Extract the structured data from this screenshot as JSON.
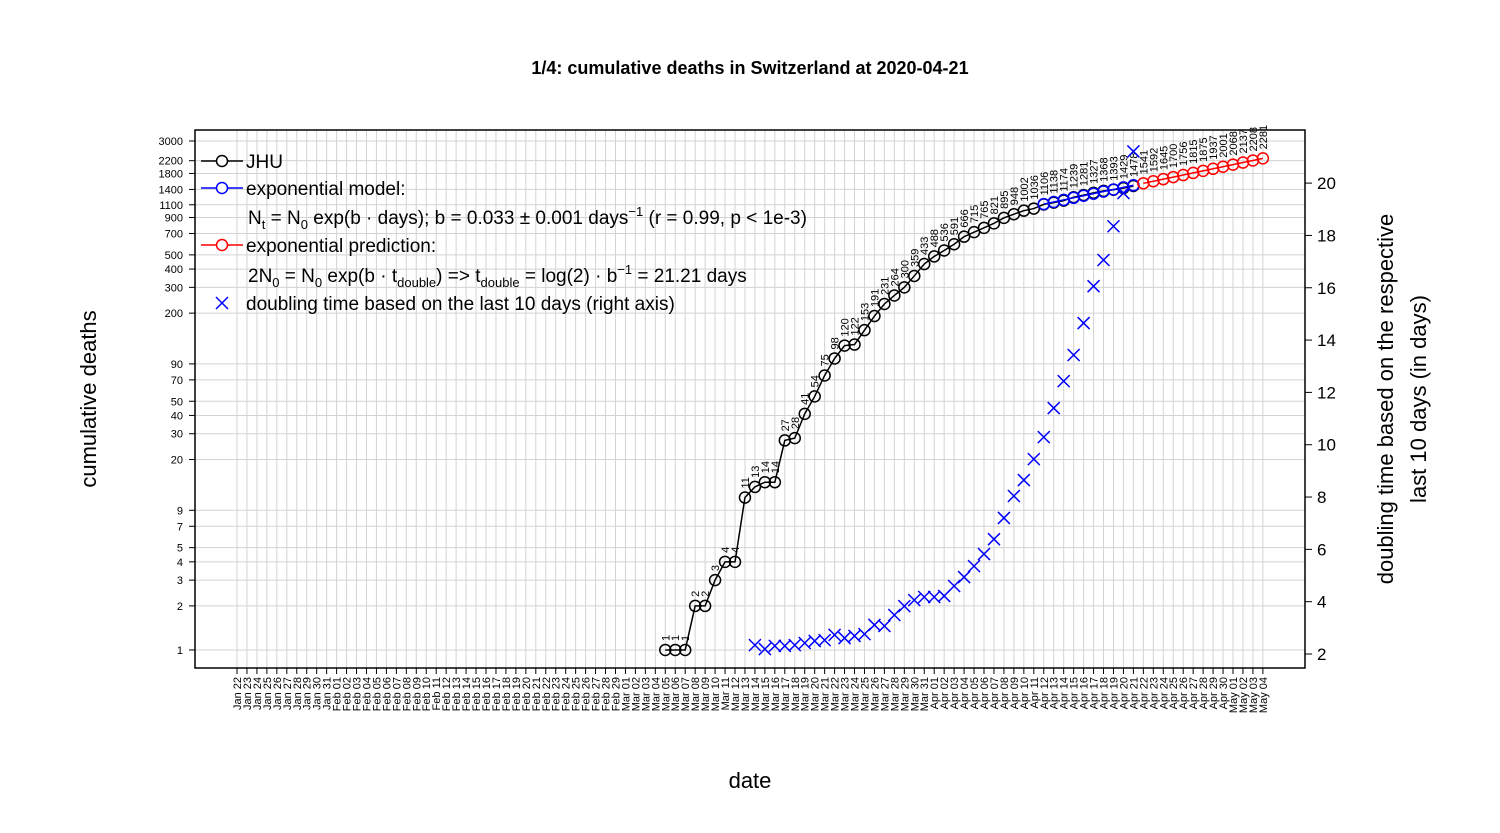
{
  "chart_data": {
    "type": "line",
    "title": "1/4: cumulative deaths in Switzerland at 2020-04-21",
    "x_label": "date",
    "y_label": "cumulative deaths",
    "y2_label": [
      "doubling time based on the respective",
      "last 10 days (in days)"
    ],
    "log_y": true,
    "grid": true,
    "legend_position": "top-left",
    "categories": [
      "Jan 22",
      "Jan 23",
      "Jan 24",
      "Jan 25",
      "Jan 26",
      "Jan 27",
      "Jan 28",
      "Jan 29",
      "Jan 30",
      "Jan 31",
      "Feb 01",
      "Feb 02",
      "Feb 03",
      "Feb 04",
      "Feb 05",
      "Feb 06",
      "Feb 07",
      "Feb 08",
      "Feb 09",
      "Feb 10",
      "Feb 11",
      "Feb 12",
      "Feb 13",
      "Feb 14",
      "Feb 15",
      "Feb 16",
      "Feb 17",
      "Feb 18",
      "Feb 19",
      "Feb 20",
      "Feb 21",
      "Feb 22",
      "Feb 23",
      "Feb 24",
      "Feb 25",
      "Feb 26",
      "Feb 27",
      "Feb 28",
      "Feb 29",
      "Mar 01",
      "Mar 02",
      "Mar 03",
      "Mar 04",
      "Mar 05",
      "Mar 06",
      "Mar 07",
      "Mar 08",
      "Mar 09",
      "Mar 10",
      "Mar 11",
      "Mar 12",
      "Mar 13",
      "Mar 14",
      "Mar 15",
      "Mar 16",
      "Mar 17",
      "Mar 18",
      "Mar 19",
      "Mar 20",
      "Mar 21",
      "Mar 22",
      "Mar 23",
      "Mar 24",
      "Mar 25",
      "Mar 26",
      "Mar 27",
      "Mar 28",
      "Mar 29",
      "Mar 30",
      "Mar 31",
      "Apr 01",
      "Apr 02",
      "Apr 03",
      "Apr 04",
      "Apr 05",
      "Apr 06",
      "Apr 07",
      "Apr 08",
      "Apr 09",
      "Apr 10",
      "Apr 11",
      "Apr 12",
      "Apr 13",
      "Apr 14",
      "Apr 15",
      "Apr 16",
      "Apr 17",
      "Apr 18",
      "Apr 19",
      "Apr 20",
      "Apr 21",
      "Apr 22",
      "Apr 23",
      "Apr 24",
      "Apr 25",
      "Apr 26",
      "Apr 27",
      "Apr 28",
      "Apr 29",
      "Apr 30",
      "May 01",
      "May 02",
      "May 03",
      "May 04"
    ],
    "series": [
      {
        "name": "JHU",
        "color": "#000000",
        "labels": true,
        "values": [
          null,
          null,
          null,
          null,
          null,
          null,
          null,
          null,
          null,
          null,
          null,
          null,
          null,
          null,
          null,
          null,
          null,
          null,
          null,
          null,
          null,
          null,
          null,
          null,
          null,
          null,
          null,
          null,
          null,
          null,
          null,
          null,
          null,
          null,
          null,
          null,
          null,
          null,
          null,
          null,
          null,
          null,
          null,
          1,
          1,
          1,
          2,
          2,
          3,
          4,
          4,
          11,
          13,
          14,
          14,
          27,
          28,
          41,
          54,
          75,
          98,
          120,
          122,
          153,
          191,
          231,
          264,
          300,
          359,
          433,
          488,
          536,
          591,
          666,
          715,
          765,
          821,
          895,
          948,
          1002,
          1036,
          1106,
          1138,
          1174,
          1239,
          1281,
          1327,
          1368,
          1393,
          1429,
          1478,
          null,
          null,
          null,
          null,
          null,
          null,
          null,
          null,
          null,
          null,
          null,
          null,
          null
        ]
      },
      {
        "name": "exponential model:",
        "color": "#0000ff",
        "labels": false,
        "values": [
          null,
          null,
          null,
          null,
          null,
          null,
          null,
          null,
          null,
          null,
          null,
          null,
          null,
          null,
          null,
          null,
          null,
          null,
          null,
          null,
          null,
          null,
          null,
          null,
          null,
          null,
          null,
          null,
          null,
          null,
          null,
          null,
          null,
          null,
          null,
          null,
          null,
          null,
          null,
          null,
          null,
          null,
          null,
          null,
          null,
          null,
          null,
          null,
          null,
          null,
          null,
          null,
          null,
          null,
          null,
          null,
          null,
          null,
          null,
          null,
          null,
          null,
          null,
          null,
          null,
          null,
          null,
          null,
          null,
          null,
          null,
          null,
          null,
          null,
          null,
          null,
          null,
          null,
          null,
          null,
          null,
          1112,
          1149,
          1187,
          1227,
          1268,
          1310,
          1354,
          1399,
          1446,
          1494,
          null,
          null,
          null,
          null,
          null,
          null,
          null,
          null,
          null,
          null,
          null,
          null,
          null
        ]
      },
      {
        "name": "exponential prediction:",
        "color": "#ff0000",
        "labels": true,
        "values": [
          null,
          null,
          null,
          null,
          null,
          null,
          null,
          null,
          null,
          null,
          null,
          null,
          null,
          null,
          null,
          null,
          null,
          null,
          null,
          null,
          null,
          null,
          null,
          null,
          null,
          null,
          null,
          null,
          null,
          null,
          null,
          null,
          null,
          null,
          null,
          null,
          null,
          null,
          null,
          null,
          null,
          null,
          null,
          null,
          null,
          null,
          null,
          null,
          null,
          null,
          null,
          null,
          null,
          null,
          null,
          null,
          null,
          null,
          null,
          null,
          null,
          null,
          null,
          null,
          null,
          null,
          null,
          null,
          null,
          null,
          null,
          null,
          null,
          null,
          null,
          null,
          null,
          null,
          null,
          null,
          null,
          null,
          null,
          null,
          null,
          null,
          null,
          null,
          null,
          null,
          null,
          1541,
          1592,
          1645,
          1700,
          1756,
          1815,
          1875,
          1937,
          2001,
          2068,
          2137,
          2208,
          2281
        ]
      },
      {
        "name": "doubling time based on the last  10  days (right axis)",
        "color": "#0000ff",
        "axis": "y2",
        "labels": false,
        "values": [
          null,
          null,
          null,
          null,
          null,
          null,
          null,
          null,
          null,
          null,
          null,
          null,
          null,
          null,
          null,
          null,
          null,
          null,
          null,
          null,
          null,
          null,
          null,
          null,
          null,
          null,
          null,
          null,
          null,
          null,
          null,
          null,
          null,
          null,
          null,
          null,
          null,
          null,
          null,
          null,
          null,
          null,
          null,
          null,
          null,
          null,
          null,
          null,
          null,
          null,
          null,
          null,
          2.34,
          2.19,
          2.31,
          2.31,
          2.34,
          2.42,
          2.5,
          2.53,
          2.73,
          2.61,
          2.69,
          2.76,
          3.11,
          3.07,
          3.49,
          3.83,
          4.06,
          4.18,
          4.18,
          4.22,
          4.6,
          4.94,
          5.36,
          5.82,
          6.39,
          7.2,
          8.04,
          8.65,
          9.45,
          10.29,
          11.4,
          12.43,
          13.43,
          14.65,
          16.06,
          17.06,
          18.35,
          19.62,
          21.21,
          null,
          null,
          null,
          null,
          null,
          null,
          null,
          null,
          null,
          null,
          null,
          null,
          null
        ]
      }
    ],
    "legend_notes": [
      [
        "N",
        "t",
        " = N",
        "0",
        " exp(b · days); b = 0.033 ± 0.001 days",
        "−1",
        " (r = 0.99, p < 1e-3)"
      ],
      [
        "2N",
        "0",
        " = N",
        "0",
        " exp(b · t",
        "double",
        ") => t",
        "double",
        " = log(2) · b",
        "−1",
        " = 21.21 days"
      ]
    ],
    "ylim": [
      0.753,
      3565
    ],
    "yticks": [
      1,
      2,
      3,
      4,
      5,
      7,
      9,
      20,
      30,
      40,
      50,
      70,
      90,
      200,
      300,
      400,
      500,
      700,
      900,
      1100,
      1400,
      1800,
      2200,
      3000
    ],
    "y2lim": [
      1.465,
      22.03
    ],
    "y2ticks": [
      2,
      4,
      6,
      8,
      10,
      12,
      14,
      16,
      18,
      20
    ]
  }
}
